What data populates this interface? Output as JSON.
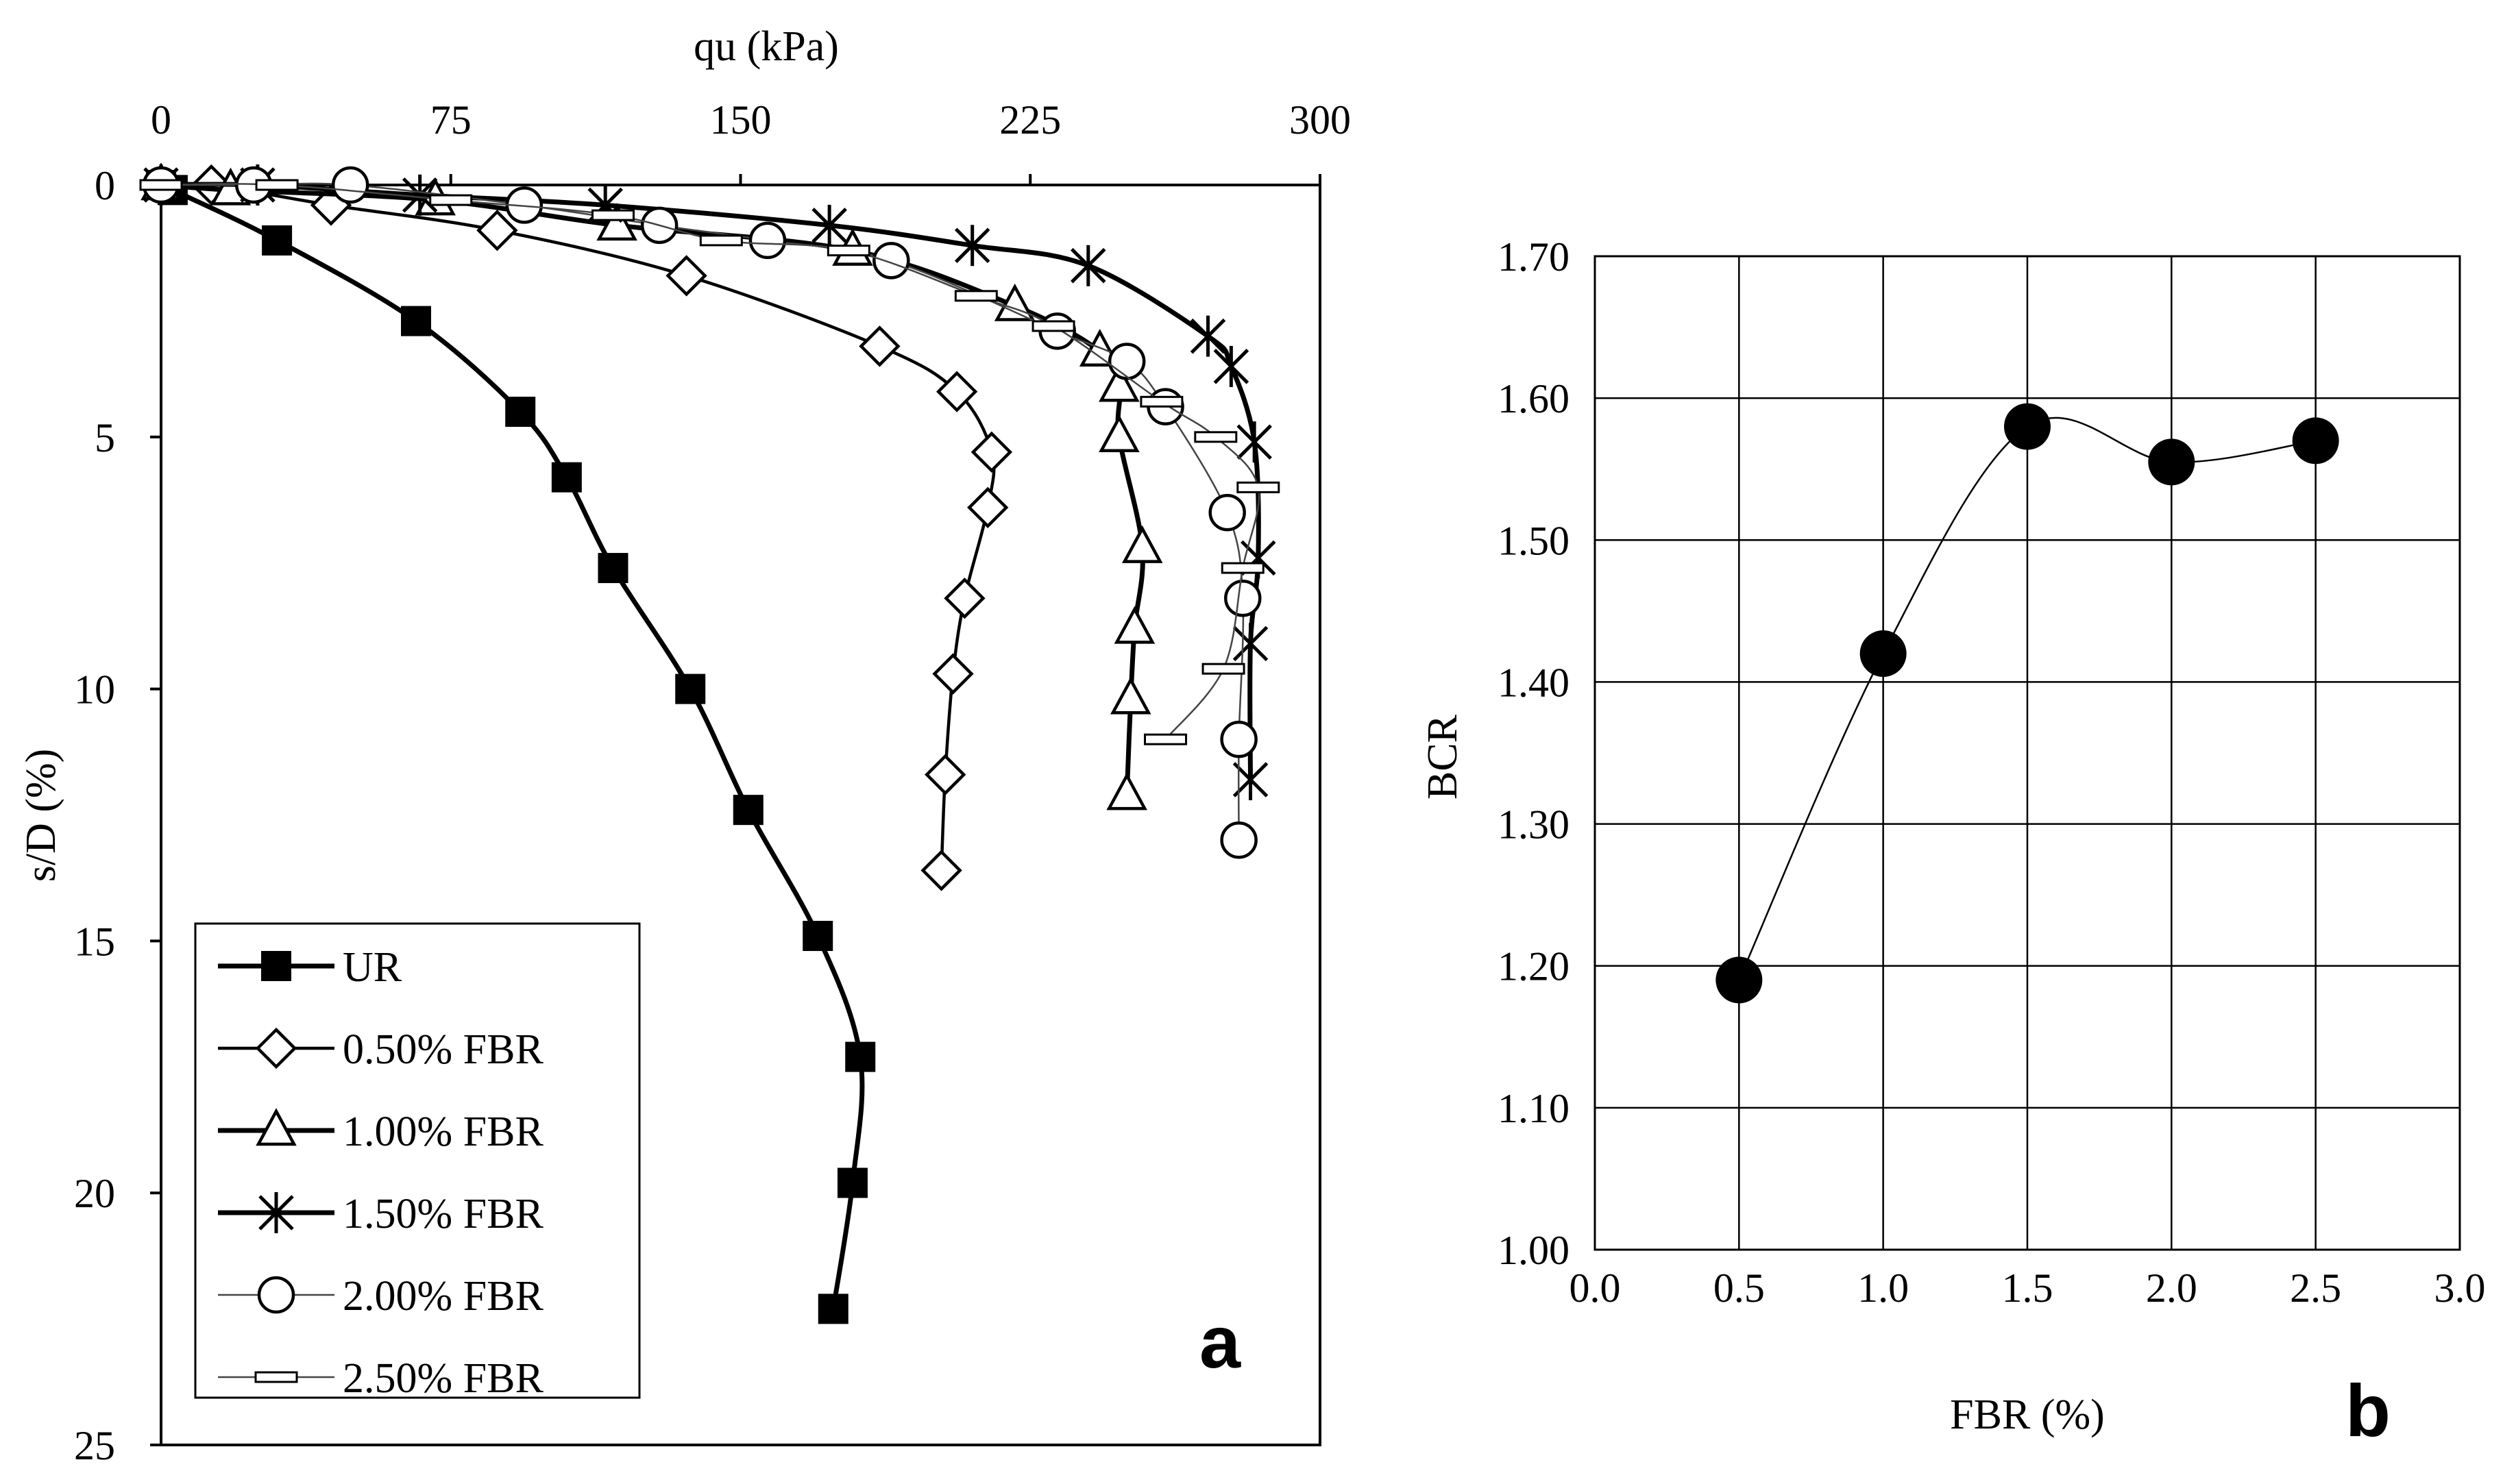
{
  "chart_data": [
    {
      "type": "line",
      "panel_label": "a",
      "xlabel": "qu (kPa)",
      "ylabel": "s/D (%)",
      "x_axis_position": "top",
      "y_axis_inverted": true,
      "xlim": [
        0,
        300
      ],
      "ylim": [
        0,
        25
      ],
      "x_ticks": [
        0,
        75,
        150,
        225,
        300
      ],
      "y_ticks": [
        0,
        5,
        10,
        15,
        20,
        25
      ],
      "grid": false,
      "legend_position": "bottom-left",
      "series": [
        {
          "name": "UR",
          "marker": "filled-square",
          "line": "thick",
          "points": [
            [
              0,
              0
            ],
            [
              3,
              0.1
            ],
            [
              30,
              1.1
            ],
            [
              66,
              2.7
            ],
            [
              93,
              4.5
            ],
            [
              105,
              5.8
            ],
            [
              117,
              7.6
            ],
            [
              137,
              10
            ],
            [
              152,
              12.4
            ],
            [
              170,
              14.9
            ],
            [
              181,
              17.3
            ],
            [
              179,
              19.8
            ],
            [
              174,
              22.3
            ]
          ]
        },
        {
          "name": "0.50% FBR",
          "marker": "open-diamond",
          "line": "medium",
          "points": [
            [
              0,
              0
            ],
            [
              13,
              0
            ],
            [
              44,
              0.4
            ],
            [
              87,
              0.9
            ],
            [
              136,
              1.8
            ],
            [
              186,
              3.2
            ],
            [
              206,
              4.1
            ],
            [
              215,
              5.3
            ],
            [
              214,
              6.4
            ],
            [
              208,
              8.2
            ],
            [
              205,
              9.7
            ],
            [
              203,
              11.7
            ],
            [
              202,
              13.6
            ]
          ]
        },
        {
          "name": "1.00% FBR",
          "marker": "open-triangle",
          "line": "thick",
          "points": [
            [
              0,
              0
            ],
            [
              18,
              0.1
            ],
            [
              71,
              0.3
            ],
            [
              118,
              0.8
            ],
            [
              179,
              1.3
            ],
            [
              221,
              2.4
            ],
            [
              243,
              3.3
            ],
            [
              248,
              4
            ],
            [
              248,
              5
            ],
            [
              254,
              7.2
            ],
            [
              252,
              8.8
            ],
            [
              251,
              10.2
            ],
            [
              250,
              12.1
            ]
          ]
        },
        {
          "name": "1.50% FBR",
          "marker": "asterisk",
          "line": "thick",
          "points": [
            [
              0,
              0
            ],
            [
              25,
              0
            ],
            [
              67,
              0.2
            ],
            [
              115,
              0.4
            ],
            [
              173,
              0.8
            ],
            [
              210,
              1.2
            ],
            [
              240,
              1.6
            ],
            [
              271,
              3
            ],
            [
              277,
              3.6
            ],
            [
              283,
              5.1
            ],
            [
              284,
              7.4
            ],
            [
              282,
              9.1
            ],
            [
              282,
              11.8
            ]
          ]
        },
        {
          "name": "2.00% FBR",
          "marker": "open-circle",
          "line": "thin",
          "points": [
            [
              0,
              0
            ],
            [
              24,
              0
            ],
            [
              49,
              0
            ],
            [
              94,
              0.4
            ],
            [
              129,
              0.8
            ],
            [
              157,
              1.1
            ],
            [
              189,
              1.5
            ],
            [
              232,
              2.9
            ],
            [
              250,
              3.5
            ],
            [
              260,
              4.4
            ],
            [
              276,
              6.5
            ],
            [
              280,
              8.2
            ],
            [
              279,
              11
            ],
            [
              279,
              13
            ]
          ]
        },
        {
          "name": "2.50% FBR",
          "marker": "open-rectangle",
          "line": "thin",
          "points": [
            [
              0,
              0
            ],
            [
              30,
              0
            ],
            [
              75,
              0.3
            ],
            [
              117,
              0.6
            ],
            [
              145,
              1.1
            ],
            [
              178,
              1.3
            ],
            [
              211,
              2.2
            ],
            [
              231,
              2.8
            ],
            [
              259,
              4.3
            ],
            [
              273,
              5
            ],
            [
              284,
              6
            ],
            [
              280,
              7.6
            ],
            [
              275,
              9.6
            ],
            [
              260,
              11
            ]
          ]
        }
      ]
    },
    {
      "type": "line",
      "panel_label": "b",
      "xlabel": "FBR (%)",
      "ylabel": "BCR",
      "xlim": [
        0,
        3
      ],
      "ylim": [
        1.0,
        1.7
      ],
      "x_ticks": [
        "0.0",
        "0.5",
        "1.0",
        "1.5",
        "2.0",
        "2.5",
        "3.0"
      ],
      "y_ticks": [
        "1.00",
        "1.10",
        "1.20",
        "1.30",
        "1.40",
        "1.50",
        "1.60",
        "1.70"
      ],
      "grid": true,
      "marker": "filled-circle",
      "x": [
        0.5,
        1.0,
        1.5,
        2.0,
        2.5
      ],
      "y": [
        1.19,
        1.42,
        1.58,
        1.555,
        1.57
      ]
    }
  ]
}
